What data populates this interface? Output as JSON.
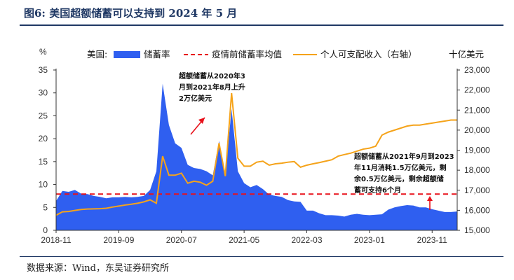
{
  "header": {
    "title": "图6:  美国超额储蓄可以支持到 2024 年 5 月"
  },
  "footer": {
    "source": "数据来源：Wind，东吴证券研究所"
  },
  "chart_data": {
    "type": "area",
    "left_unit": "%",
    "right_unit": "十亿美元",
    "legend_prefix": "美国:",
    "legend": [
      "储蓄率",
      "疫情前储蓄率均值",
      "个人可支配收入（右轴）"
    ],
    "x_ticks": [
      "2018-11",
      "2019-09",
      "2020-07",
      "2021-05",
      "2022-03",
      "2023-01",
      "2023-11"
    ],
    "y_left_ticks": [
      "0",
      "5",
      "10",
      "15",
      "20",
      "25",
      "30",
      "35"
    ],
    "y_right_ticks": [
      "15,000",
      "16,000",
      "17,000",
      "18,000",
      "19,000",
      "20,000",
      "21,000",
      "22,000",
      "23,000"
    ],
    "y_left_range": [
      0,
      35
    ],
    "y_right_range": [
      15000,
      23000
    ],
    "colors": {
      "saving_rate": "#2f5ff0",
      "pre_covid_mean": "#e8101a",
      "income": "#f5a31a"
    },
    "pre_covid_mean": 7.9,
    "series": [
      {
        "name": "储蓄率",
        "axis": "left",
        "values": [
          6.4,
          8.6,
          8.4,
          8.8,
          8.0,
          7.9,
          7.5,
          7.3,
          7.0,
          7.2,
          7.2,
          7.3,
          7.2,
          7.3,
          7.5,
          8.8,
          12.9,
          32.0,
          23.0,
          19.0,
          18.0,
          14.3,
          13.6,
          13.4,
          12.9,
          12.0,
          19.5,
          12.0,
          26.5,
          12.9,
          10.3,
          9.4,
          9.9,
          9.0,
          7.8,
          7.5,
          7.3,
          6.6,
          6.3,
          6.2,
          4.3,
          4.3,
          3.7,
          3.3,
          3.3,
          3.2,
          3.0,
          3.4,
          3.6,
          3.4,
          3.3,
          3.4,
          3.5,
          4.5,
          5.0,
          5.3,
          5.5,
          5.4,
          5.0,
          5.0,
          4.6,
          4.3,
          4.0,
          4.0,
          4.1
        ]
      },
      {
        "name": "个人可支配收入（右轴）",
        "axis": "right",
        "values": [
          15750,
          15920,
          15940,
          15990,
          16040,
          16060,
          16070,
          16080,
          16100,
          16160,
          16210,
          16260,
          16300,
          16350,
          16420,
          16520,
          16350,
          18700,
          17750,
          17750,
          17850,
          17350,
          17450,
          17400,
          17250,
          17450,
          19350,
          17700,
          21850,
          18600,
          18200,
          18200,
          18400,
          18450,
          18250,
          18320,
          18350,
          18400,
          18430,
          18150,
          18250,
          18320,
          18380,
          18450,
          18520,
          18700,
          18780,
          18850,
          18950,
          19050,
          19100,
          19200,
          19750,
          19900,
          20000,
          20100,
          20200,
          20250,
          20250,
          20300,
          20350,
          20400,
          20450,
          20500,
          20500
        ]
      }
    ],
    "annotations": [
      {
        "text": [
          "超额储蓄从2020年3",
          "月到2021年8月上升",
          "2万亿美元"
        ]
      },
      {
        "text": [
          "超额储蓄从2021年9月到2023",
          "年11月消耗1.5万亿美元，剩",
          "余0.5万亿美元，剩余超额储",
          "蓄可支持6个月"
        ]
      }
    ]
  }
}
